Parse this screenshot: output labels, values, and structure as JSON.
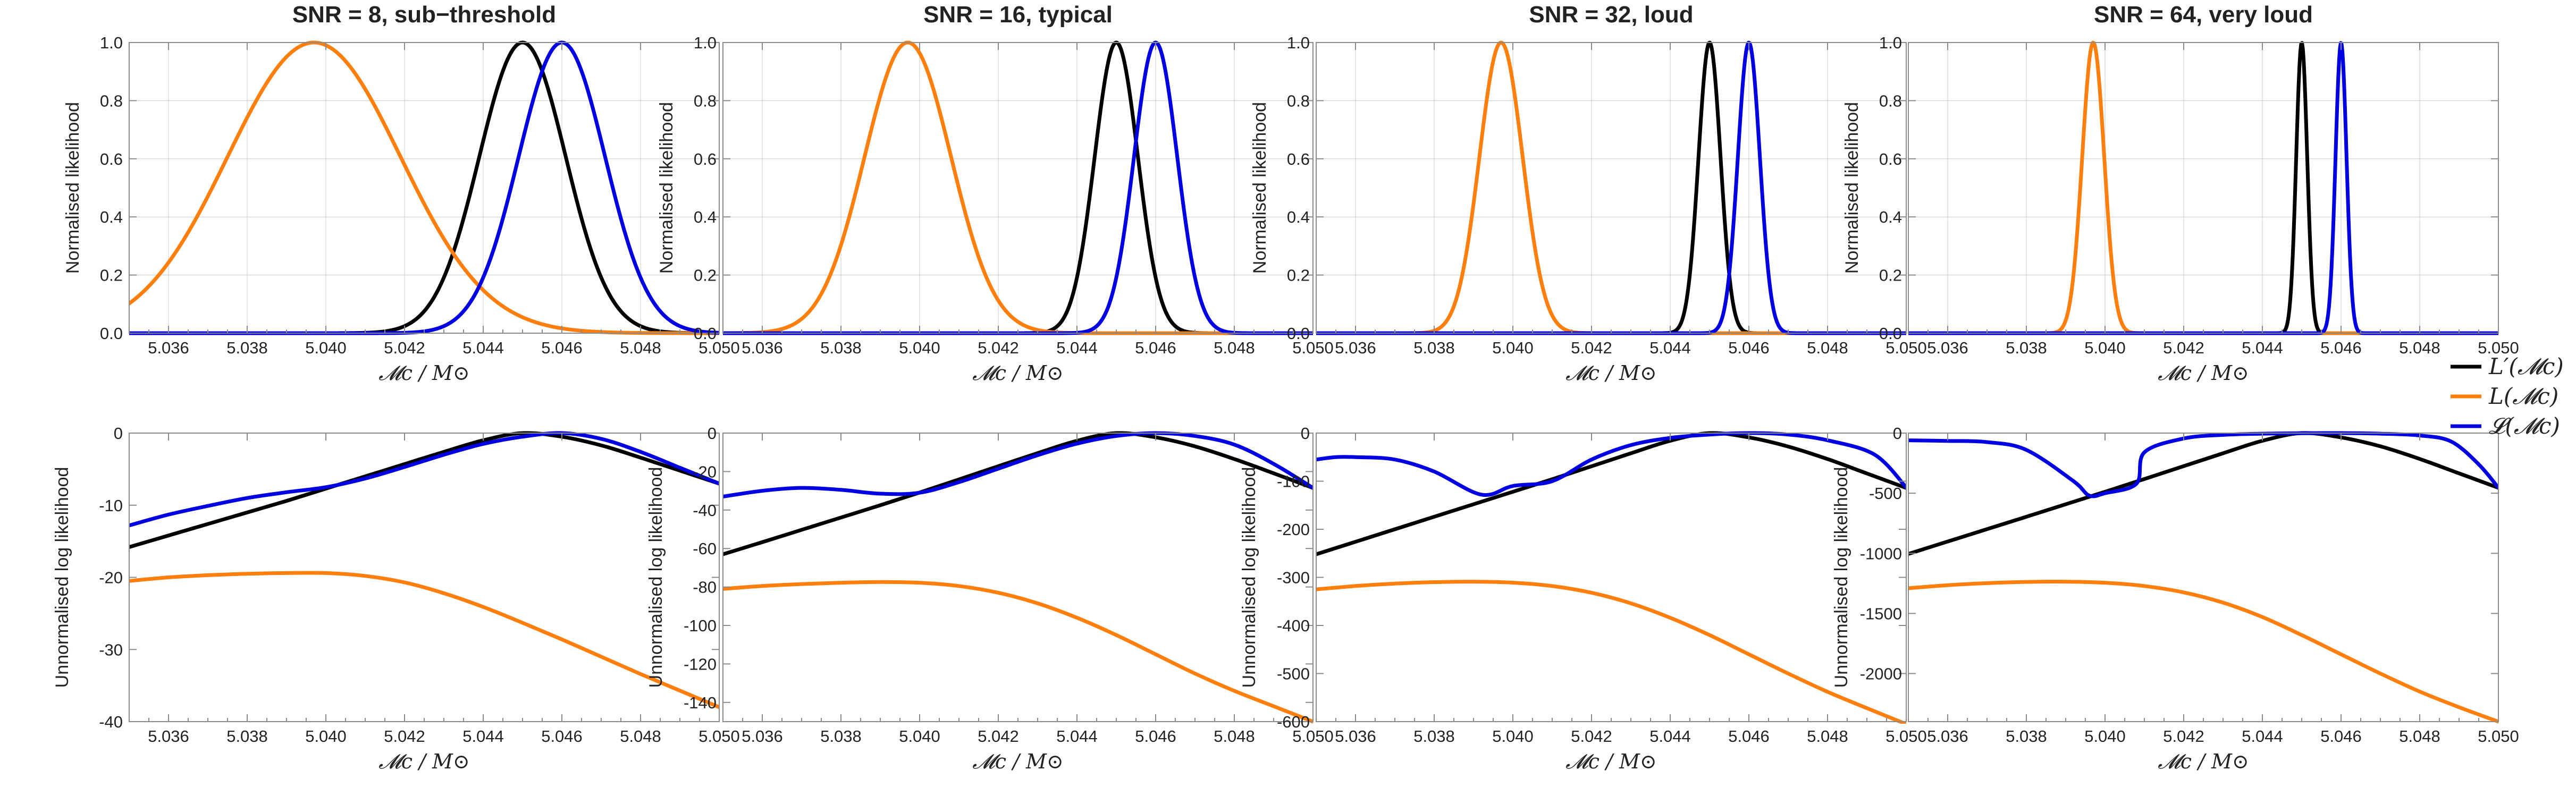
{
  "figure": {
    "legend": [
      {
        "key": "lprime",
        "label": "L′(𝓜c)",
        "color": "#000000"
      },
      {
        "key": "L",
        "label": "L(𝓜c)",
        "color": "#ff7f0e"
      },
      {
        "key": "curlyL",
        "label": "𝓛(𝓜c)",
        "color": "#0000e0"
      }
    ]
  },
  "chart_data": [
    {
      "type": "line",
      "title": "SNR = 8, sub−threshold",
      "xlabel": "𝓜c / M⊙",
      "ylabel": "Normalised likelihood",
      "xlim": [
        5.035,
        5.05
      ],
      "ylim": [
        0,
        1.0
      ],
      "xticks": [
        "5.036",
        "5.038",
        "5.040",
        "5.042",
        "5.044",
        "5.046",
        "5.048",
        "5.050"
      ],
      "yticks": [
        "0.0",
        "0.2",
        "0.4",
        "0.6",
        "0.8",
        "1.0"
      ],
      "grid": true,
      "series": [
        {
          "name": "L′(𝓜c)",
          "color": "#000000",
          "peak": 5.045,
          "width": 0.0011
        },
        {
          "name": "L(𝓜c)",
          "color": "#ff7f0e",
          "peak": 5.0397,
          "width": 0.0022
        },
        {
          "name": "𝓛(𝓜c)",
          "color": "#0000e0",
          "peak": 5.046,
          "width": 0.0011
        }
      ]
    },
    {
      "type": "line",
      "title": "SNR = 16, typical",
      "xlabel": "𝓜c / M⊙",
      "ylabel": "Normalised likelihood",
      "xlim": [
        5.035,
        5.05
      ],
      "ylim": [
        0,
        1.0
      ],
      "xticks": [
        "5.036",
        "5.038",
        "5.040",
        "5.042",
        "5.044",
        "5.046",
        "5.048",
        "5.050"
      ],
      "yticks": [
        "0.0",
        "0.2",
        "0.4",
        "0.6",
        "0.8",
        "1.0"
      ],
      "grid": true,
      "series": [
        {
          "name": "L′(𝓜c)",
          "color": "#000000",
          "peak": 5.045,
          "width": 0.00055
        },
        {
          "name": "L(𝓜c)",
          "color": "#ff7f0e",
          "peak": 5.0397,
          "width": 0.0011
        },
        {
          "name": "𝓛(𝓜c)",
          "color": "#0000e0",
          "peak": 5.046,
          "width": 0.00055
        }
      ]
    },
    {
      "type": "line",
      "title": "SNR = 32, loud",
      "xlabel": "𝓜c / M⊙",
      "ylabel": "Normalised likelihood",
      "xlim": [
        5.035,
        5.05
      ],
      "ylim": [
        0,
        1.0
      ],
      "xticks": [
        "5.036",
        "5.038",
        "5.040",
        "5.042",
        "5.044",
        "5.046",
        "5.048",
        "5.050"
      ],
      "yticks": [
        "0.0",
        "0.2",
        "0.4",
        "0.6",
        "0.8",
        "1.0"
      ],
      "grid": true,
      "series": [
        {
          "name": "L′(𝓜c)",
          "color": "#000000",
          "peak": 5.045,
          "width": 0.00028
        },
        {
          "name": "L(𝓜c)",
          "color": "#ff7f0e",
          "peak": 5.0397,
          "width": 0.00055
        },
        {
          "name": "𝓛(𝓜c)",
          "color": "#0000e0",
          "peak": 5.046,
          "width": 0.00028
        }
      ]
    },
    {
      "type": "line",
      "title": "SNR = 64, very loud",
      "xlabel": "𝓜c / M⊙",
      "ylabel": "Normalised likelihood",
      "xlim": [
        5.035,
        5.05
      ],
      "ylim": [
        0,
        1.0
      ],
      "xticks": [
        "5.036",
        "5.038",
        "5.040",
        "5.042",
        "5.044",
        "5.046",
        "5.048",
        "5.050"
      ],
      "yticks": [
        "0.0",
        "0.2",
        "0.4",
        "0.6",
        "0.8",
        "1.0"
      ],
      "grid": true,
      "series": [
        {
          "name": "L′(𝓜c)",
          "color": "#000000",
          "peak": 5.045,
          "width": 0.00014
        },
        {
          "name": "L(𝓜c)",
          "color": "#ff7f0e",
          "peak": 5.0397,
          "width": 0.00028
        },
        {
          "name": "𝓛(𝓜c)",
          "color": "#0000e0",
          "peak": 5.046,
          "width": 0.00014
        }
      ]
    },
    {
      "type": "line",
      "title": "",
      "xlabel": "𝓜c / M⊙",
      "ylabel": "Unnormalised log likelihood",
      "xlim": [
        5.035,
        5.05
      ],
      "ylim": [
        -40,
        0
      ],
      "xticks": [
        "5.036",
        "5.038",
        "5.040",
        "5.042",
        "5.044",
        "5.046",
        "5.048",
        "5.050"
      ],
      "yticks": [
        "0",
        "-10",
        "-20",
        "-30",
        "-40"
      ],
      "grid": false,
      "series": [
        {
          "name": "L′(𝓜c)",
          "color": "#000000",
          "x": [
            5.035,
            5.036,
            5.037,
            5.038,
            5.039,
            5.04,
            5.041,
            5.042,
            5.043,
            5.044,
            5.045,
            5.046,
            5.047,
            5.048,
            5.049,
            5.05
          ],
          "y": [
            -15.8,
            -14.2,
            -12.6,
            -11.0,
            -9.4,
            -7.7,
            -6.0,
            -4.3,
            -2.6,
            -1.0,
            0.0,
            -0.5,
            -1.7,
            -3.4,
            -5.2,
            -7.0
          ]
        },
        {
          "name": "L(𝓜c)",
          "color": "#ff7f0e",
          "x": [
            5.035,
            5.036,
            5.037,
            5.038,
            5.039,
            5.04,
            5.041,
            5.042,
            5.043,
            5.044,
            5.045,
            5.046,
            5.047,
            5.048,
            5.049,
            5.05
          ],
          "y": [
            -20.5,
            -20.0,
            -19.7,
            -19.5,
            -19.4,
            -19.4,
            -19.8,
            -20.7,
            -22.2,
            -24.1,
            -26.3,
            -28.6,
            -31.0,
            -33.4,
            -35.7,
            -38.0
          ]
        },
        {
          "name": "𝓛(𝓜c)",
          "color": "#0000e0",
          "x": [
            5.035,
            5.036,
            5.037,
            5.038,
            5.039,
            5.04,
            5.041,
            5.042,
            5.043,
            5.044,
            5.045,
            5.046,
            5.047,
            5.048,
            5.049,
            5.05
          ],
          "y": [
            -12.8,
            -11.3,
            -10.1,
            -9.0,
            -8.2,
            -7.5,
            -6.3,
            -4.7,
            -3.0,
            -1.5,
            -0.5,
            0.0,
            -0.8,
            -2.6,
            -4.8,
            -7.0
          ]
        }
      ]
    },
    {
      "type": "line",
      "title": "",
      "xlabel": "𝓜c / M⊙",
      "ylabel": "Unnormalised log likelihood",
      "xlim": [
        5.035,
        5.05
      ],
      "ylim": [
        -150,
        0
      ],
      "xticks": [
        "5.036",
        "5.038",
        "5.040",
        "5.042",
        "5.044",
        "5.046",
        "5.048",
        "5.050"
      ],
      "yticks": [
        "0",
        "-20",
        "-40",
        "-60",
        "-80",
        "-100",
        "-120",
        "-140"
      ],
      "grid": false,
      "series": [
        {
          "name": "L′(𝓜c)",
          "color": "#000000",
          "x": [
            5.035,
            5.036,
            5.037,
            5.038,
            5.039,
            5.04,
            5.041,
            5.042,
            5.043,
            5.044,
            5.045,
            5.046,
            5.047,
            5.048,
            5.049,
            5.05
          ],
          "y": [
            -63,
            -56.7,
            -50.3,
            -43.9,
            -37.5,
            -30.9,
            -24.1,
            -17.2,
            -10.4,
            -4.0,
            0.0,
            -2.2,
            -6.9,
            -13.5,
            -20.9,
            -28.5
          ]
        },
        {
          "name": "L(𝓜c)",
          "color": "#ff7f0e",
          "x": [
            5.035,
            5.036,
            5.037,
            5.038,
            5.039,
            5.04,
            5.041,
            5.042,
            5.043,
            5.044,
            5.045,
            5.046,
            5.047,
            5.048,
            5.049,
            5.05
          ],
          "y": [
            -81,
            -79.5,
            -78.5,
            -77.8,
            -77.4,
            -77.8,
            -79.5,
            -83.0,
            -88.5,
            -96.0,
            -105,
            -115,
            -125,
            -134,
            -142,
            -150
          ]
        },
        {
          "name": "𝓛(𝓜c)",
          "color": "#0000e0",
          "x": [
            5.035,
            5.036,
            5.037,
            5.038,
            5.039,
            5.04,
            5.041,
            5.042,
            5.043,
            5.044,
            5.045,
            5.046,
            5.047,
            5.048,
            5.049,
            5.05
          ],
          "y": [
            -33,
            -30,
            -28.5,
            -29.5,
            -31.5,
            -31.0,
            -25.5,
            -18.5,
            -11.5,
            -5.5,
            -1.5,
            0.0,
            -1.5,
            -6.0,
            -16.0,
            -28.5
          ]
        }
      ]
    },
    {
      "type": "line",
      "title": "",
      "xlabel": "𝓜c / M⊙",
      "ylabel": "Unnormalised log likelihood",
      "xlim": [
        5.035,
        5.05
      ],
      "ylim": [
        -600,
        0
      ],
      "xticks": [
        "5.036",
        "5.038",
        "5.040",
        "5.042",
        "5.044",
        "5.046",
        "5.048",
        "5.050"
      ],
      "yticks": [
        "0",
        "-100",
        "-200",
        "-300",
        "-400",
        "-500",
        "-600"
      ],
      "grid": false,
      "series": [
        {
          "name": "L′(𝓜c)",
          "color": "#000000",
          "x": [
            5.035,
            5.036,
            5.037,
            5.038,
            5.039,
            5.04,
            5.041,
            5.042,
            5.043,
            5.044,
            5.045,
            5.046,
            5.047,
            5.048,
            5.049,
            5.05
          ],
          "y": [
            -252,
            -226,
            -200,
            -174,
            -148,
            -122,
            -96,
            -69,
            -42,
            -16,
            0,
            -9,
            -28,
            -54,
            -84,
            -114
          ]
        },
        {
          "name": "L(𝓜c)",
          "color": "#ff7f0e",
          "x": [
            5.035,
            5.036,
            5.037,
            5.038,
            5.039,
            5.04,
            5.041,
            5.042,
            5.043,
            5.044,
            5.045,
            5.046,
            5.047,
            5.048,
            5.049,
            5.05
          ],
          "y": [
            -325,
            -318,
            -313,
            -310,
            -309,
            -311,
            -318,
            -332,
            -354,
            -384,
            -420,
            -460,
            -500,
            -538,
            -572,
            -605
          ]
        },
        {
          "name": "𝓛(𝓜c)",
          "color": "#0000e0",
          "x": [
            5.035,
            5.0355,
            5.036,
            5.037,
            5.038,
            5.0392,
            5.04,
            5.041,
            5.042,
            5.043,
            5.044,
            5.045,
            5.046,
            5.047,
            5.048,
            5.0492,
            5.05
          ],
          "y": [
            -55,
            -50,
            -50,
            -55,
            -80,
            -128,
            -110,
            -100,
            -55,
            -25,
            -10,
            -3,
            0,
            -3,
            -15,
            -45,
            -113
          ]
        }
      ]
    },
    {
      "type": "line",
      "title": "",
      "xlabel": "𝓜c / M⊙",
      "ylabel": "Unnormalised log likelihood",
      "xlim": [
        5.035,
        5.05
      ],
      "ylim": [
        -2400,
        0
      ],
      "xticks": [
        "5.036",
        "5.038",
        "5.040",
        "5.042",
        "5.044",
        "5.046",
        "5.048",
        "5.050"
      ],
      "yticks": [
        "0",
        "-500",
        "-1000",
        "-1500",
        "-2000"
      ],
      "grid": false,
      "series": [
        {
          "name": "L′(𝓜c)",
          "color": "#000000",
          "x": [
            5.035,
            5.036,
            5.037,
            5.038,
            5.039,
            5.04,
            5.041,
            5.042,
            5.043,
            5.044,
            5.045,
            5.046,
            5.047,
            5.048,
            5.049,
            5.05
          ],
          "y": [
            -1005,
            -902,
            -799,
            -696,
            -592,
            -488,
            -382,
            -275,
            -168,
            -64,
            0,
            -36,
            -110,
            -215,
            -335,
            -455
          ]
        },
        {
          "name": "L(𝓜c)",
          "color": "#ff7f0e",
          "x": [
            5.035,
            5.036,
            5.037,
            5.038,
            5.039,
            5.04,
            5.041,
            5.042,
            5.043,
            5.044,
            5.045,
            5.046,
            5.047,
            5.048,
            5.049,
            5.05
          ],
          "y": [
            -1290,
            -1265,
            -1248,
            -1238,
            -1236,
            -1245,
            -1272,
            -1325,
            -1410,
            -1530,
            -1680,
            -1840,
            -2000,
            -2150,
            -2280,
            -2400
          ]
        },
        {
          "name": "𝓛(𝓜c)",
          "color": "#0000e0",
          "x": [
            5.035,
            5.036,
            5.037,
            5.038,
            5.0392,
            5.0396,
            5.04,
            5.0408,
            5.041,
            5.042,
            5.043,
            5.044,
            5.045,
            5.046,
            5.047,
            5.048,
            5.0488,
            5.0495,
            5.05
          ],
          "y": [
            -60,
            -65,
            -75,
            -140,
            -400,
            -520,
            -500,
            -420,
            -160,
            -45,
            -15,
            -5,
            -1,
            0,
            -5,
            -20,
            -70,
            -260,
            -455
          ]
        }
      ]
    }
  ]
}
